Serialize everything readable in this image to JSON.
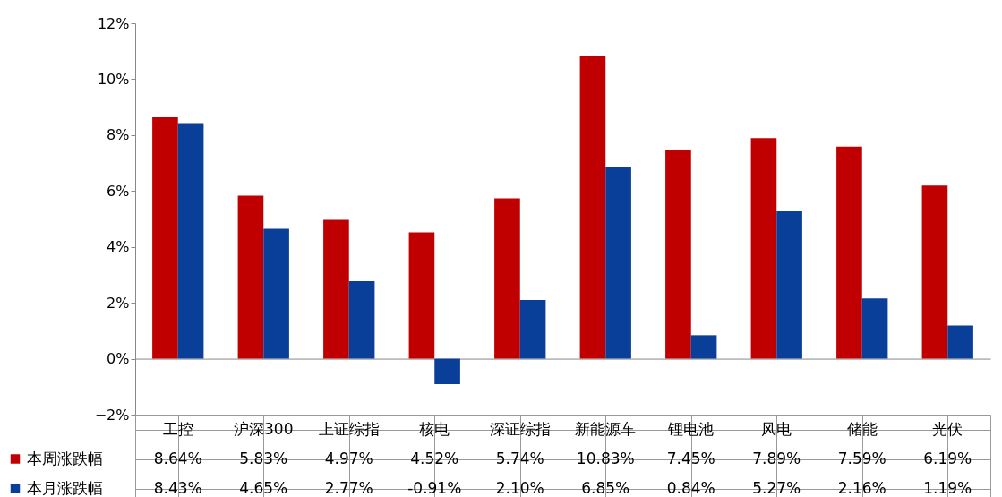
{
  "chart_data": {
    "type": "bar",
    "categories": [
      "工控",
      "沪深300",
      "上证综指",
      "核电",
      "深证综指",
      "新能源车",
      "锂电池",
      "风电",
      "储能",
      "光伏"
    ],
    "series": [
      {
        "name": "本周涨跌幅",
        "color": "#c00000",
        "values": [
          8.64,
          5.83,
          4.97,
          4.52,
          5.74,
          10.83,
          7.45,
          7.89,
          7.59,
          6.19
        ],
        "value_labels": [
          "8.64%",
          "5.83%",
          "4.97%",
          "4.52%",
          "5.74%",
          "10.83%",
          "7.45%",
          "7.89%",
          "7.59%",
          "6.19%"
        ]
      },
      {
        "name": "本月涨跌幅",
        "color": "#0a3f99",
        "values": [
          8.43,
          4.65,
          2.77,
          -0.91,
          2.1,
          6.85,
          0.84,
          5.27,
          2.16,
          1.19
        ],
        "value_labels": [
          "8.43%",
          "4.65%",
          "2.77%",
          "-0.91%",
          "2.10%",
          "6.85%",
          "0.84%",
          "5.27%",
          "2.16%",
          "1.19%"
        ]
      }
    ],
    "ylim": [
      -2,
      12
    ],
    "yticks": [
      {
        "value": -2,
        "label": "−2%"
      },
      {
        "value": 0,
        "label": "0%"
      },
      {
        "value": 2,
        "label": "2%"
      },
      {
        "value": 4,
        "label": "4%"
      },
      {
        "value": 6,
        "label": "6%"
      },
      {
        "value": 8,
        "label": "8%"
      },
      {
        "value": 10,
        "label": "10%"
      },
      {
        "value": 12,
        "label": "12%"
      }
    ],
    "legend": "bottom left"
  }
}
